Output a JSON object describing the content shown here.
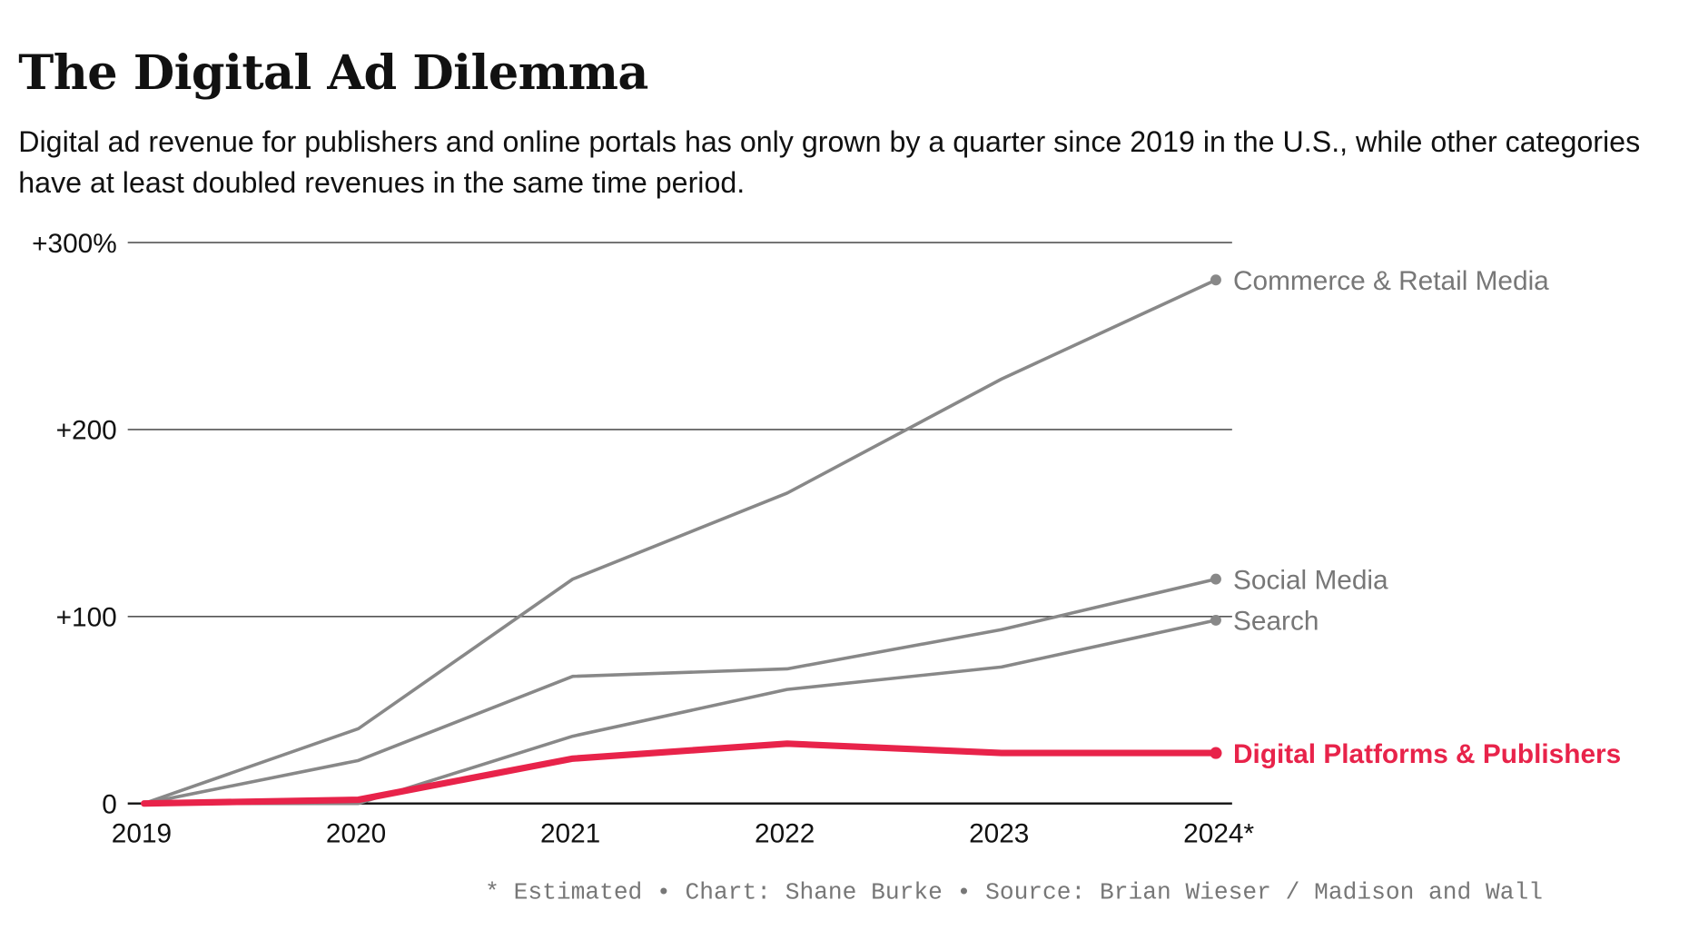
{
  "header": {
    "title": "The Digital Ad Dilemma",
    "subtitle": "Digital ad revenue for publishers and online portals has only grown by a quarter since 2019 in the U.S., while other categories have at least doubled revenues in the same time period."
  },
  "footer": "* Estimated • Chart: Shane Burke • Source: Brian Wieser / Madison and Wall",
  "colors": {
    "highlight": "#e8234a",
    "other": "#888888",
    "grid": "#555555"
  },
  "chart_data": {
    "type": "line",
    "title": "The Digital Ad Dilemma",
    "xlabel": "",
    "ylabel": "",
    "x": [
      "2019",
      "2020",
      "2021",
      "2022",
      "2023",
      "2024*"
    ],
    "ylim": [
      0,
      300
    ],
    "yticks": [
      0,
      100,
      200,
      300
    ],
    "ytick_labels": [
      "0",
      "+100",
      "+200",
      "+300%"
    ],
    "grid": true,
    "legend": "direct labels at line ends (right)",
    "series": [
      {
        "name": "Commerce & Retail Media",
        "values": [
          0,
          40,
          120,
          166,
          227,
          280
        ],
        "highlight": false
      },
      {
        "name": "Social Media",
        "values": [
          0,
          23,
          68,
          72,
          93,
          120
        ],
        "highlight": false
      },
      {
        "name": "Search",
        "values": [
          0,
          0,
          36,
          61,
          73,
          98
        ],
        "highlight": false
      },
      {
        "name": "Digital Platforms & Publishers",
        "values": [
          0,
          2,
          24,
          32,
          27,
          27
        ],
        "highlight": true
      }
    ]
  }
}
